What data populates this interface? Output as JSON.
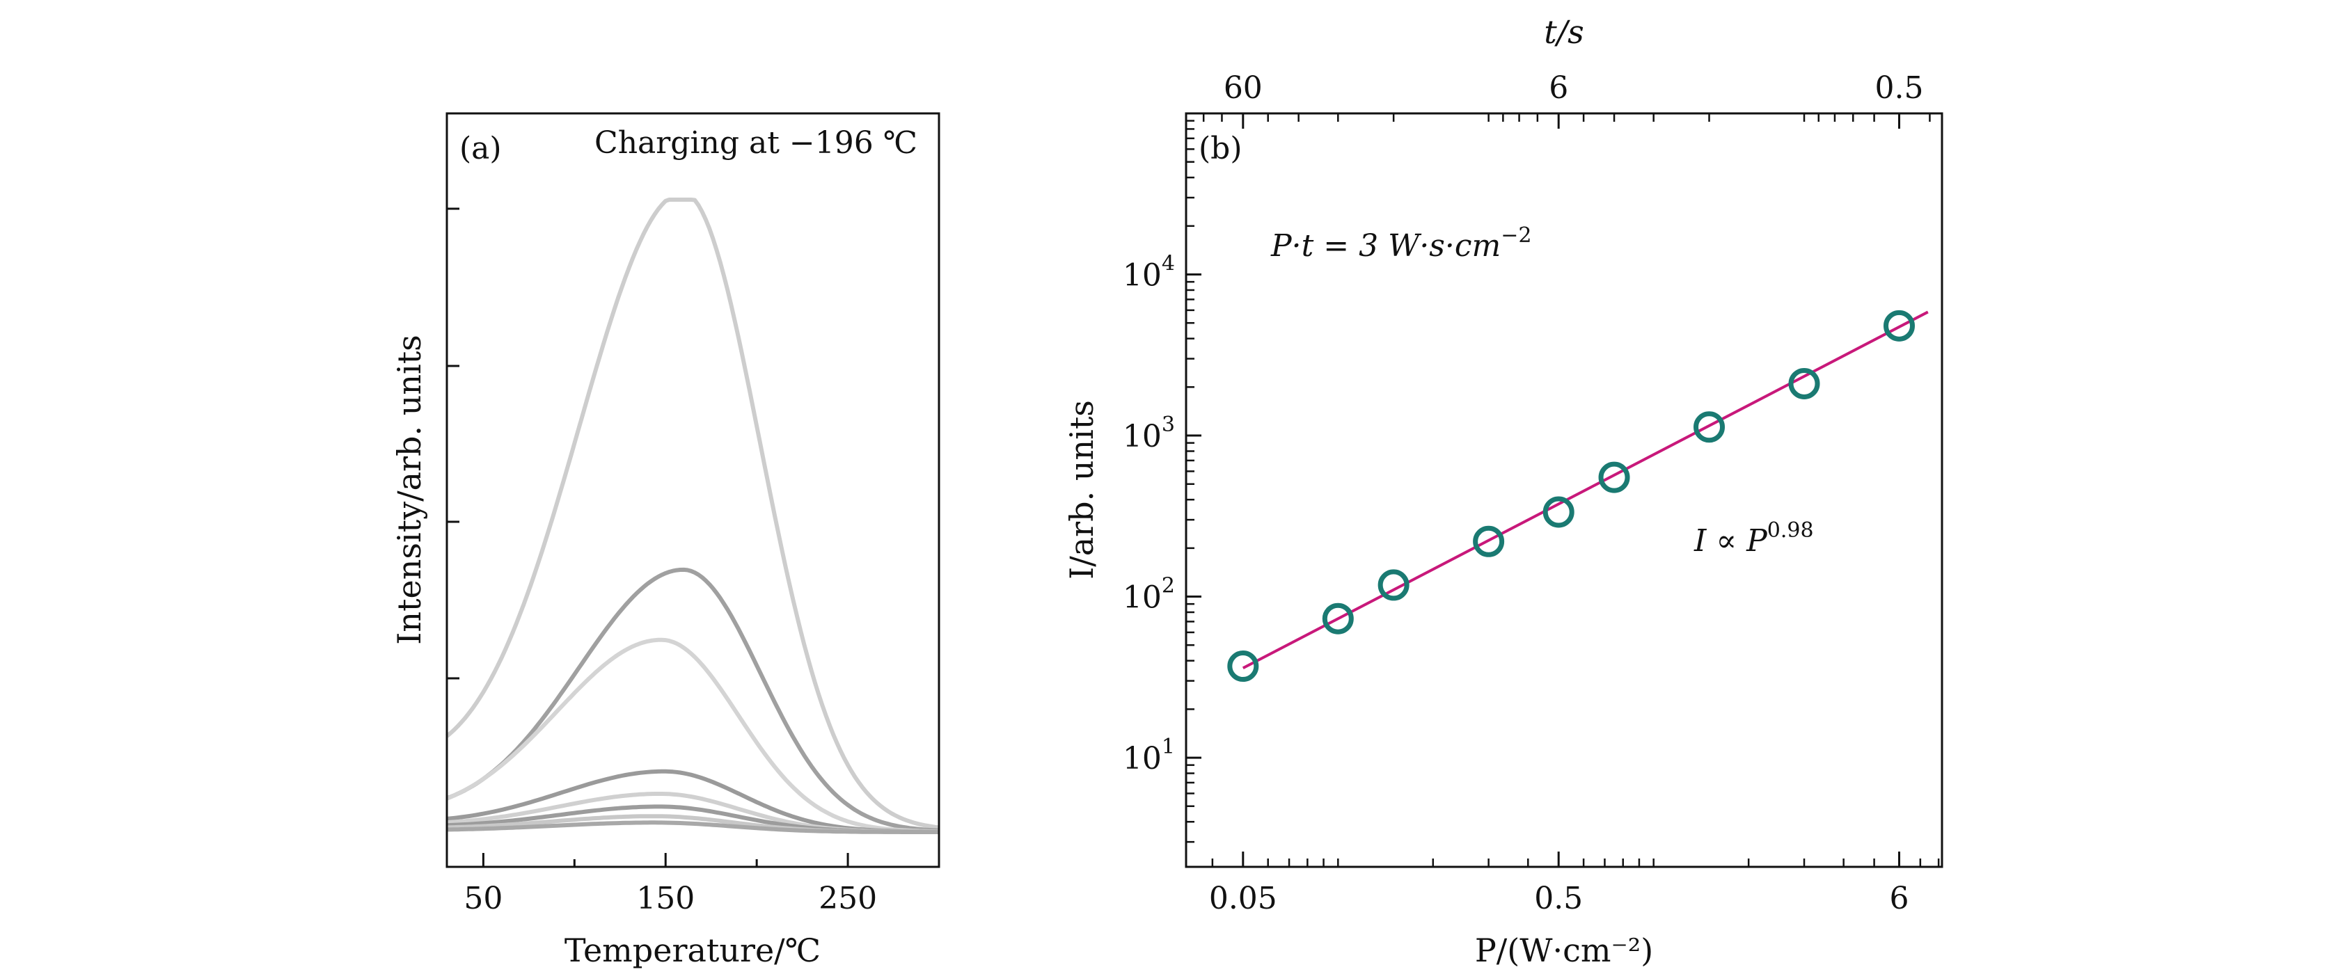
{
  "chart_data": [
    {
      "panel": "(a)",
      "type": "line",
      "annotation": "Charging at −196 ℃",
      "xlabel": "Temperature/℃",
      "ylabel": "Intensity/arb. units",
      "xlim": [
        30,
        300
      ],
      "ylim": [
        0,
        1.06
      ],
      "xticks": [
        50,
        150,
        250
      ],
      "yticks_unlabeled": [
        0.25,
        0.5,
        0.75,
        1.0
      ],
      "colors": [
        "#cdcdcd",
        "#a0a0a0",
        "#d4d4d4",
        "#9a9a9a",
        "#d0d0d0",
        "#9c9c9c",
        "#c8c8c8",
        "#a8a8a8"
      ],
      "series": [
        {
          "peak_x": 160,
          "peak_y": 1.0,
          "base": 0.07
        },
        {
          "peak_x": 160,
          "peak_y": 0.41,
          "base": 0.02
        },
        {
          "peak_x": 148,
          "peak_y": 0.3,
          "base": 0.015
        },
        {
          "peak_x": 150,
          "peak_y": 0.095,
          "base": 0.01
        },
        {
          "peak_x": 148,
          "peak_y": 0.06,
          "base": 0.008
        },
        {
          "peak_x": 148,
          "peak_y": 0.04,
          "base": 0.006
        },
        {
          "peak_x": 145,
          "peak_y": 0.025,
          "base": 0.004
        },
        {
          "peak_x": 145,
          "peak_y": 0.015,
          "base": 0.002
        }
      ]
    },
    {
      "panel": "(b)",
      "type": "scatter",
      "log_x": true,
      "log_y": true,
      "xlabel": "P/(W·cm⁻²)",
      "ylabel": "I/arb. units",
      "top_xlabel": "t/s",
      "xlim": [
        0.033,
        8.2
      ],
      "ylim": [
        2.1,
        100000
      ],
      "xticks": [
        {
          "value": 0.05,
          "label": "0.05"
        },
        {
          "value": 0.5,
          "label": "0.5"
        },
        {
          "value": 6,
          "label": "6"
        }
      ],
      "top_xticks": [
        {
          "value": 60,
          "label": "60"
        },
        {
          "value": 6,
          "label": "6"
        },
        {
          "value": 0.5,
          "label": "0.5"
        }
      ],
      "yticks": [
        {
          "value": 10,
          "base": "10",
          "exp": "1"
        },
        {
          "value": 100,
          "base": "10",
          "exp": "2"
        },
        {
          "value": 1000,
          "base": "10",
          "exp": "3"
        },
        {
          "value": 10000,
          "base": "10",
          "exp": "4"
        }
      ],
      "points": {
        "x": [
          0.05,
          0.1,
          0.15,
          0.3,
          0.5,
          0.75,
          1.5,
          3,
          6
        ],
        "y": [
          37,
          73,
          118,
          220,
          335,
          550,
          1130,
          2100,
          4800
        ]
      },
      "fit": {
        "x": [
          0.05,
          7.4
        ],
        "y": [
          36,
          5850
        ],
        "label_main": "I ∝ P",
        "label_exp": "0.98"
      },
      "annotation_main": "P·t = 3 W·s·cm",
      "annotation_exp": "−2",
      "marker_color": "#1a7a72",
      "line_color": "#c8187a"
    }
  ]
}
